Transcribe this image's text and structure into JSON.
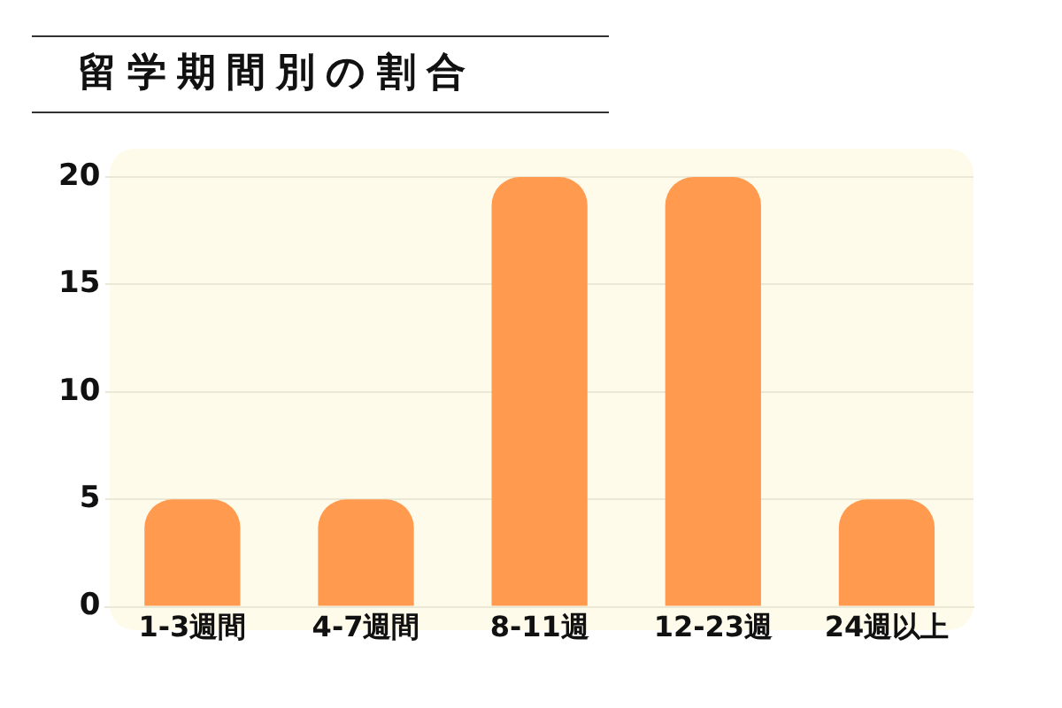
{
  "chart_data": {
    "type": "bar",
    "title": "留学期間別の割合",
    "categories": [
      "1-3週間",
      "4-7週間",
      "8-11週",
      "12-23週",
      "24週以上"
    ],
    "values": [
      5,
      5,
      20,
      20,
      5
    ],
    "color": "#ff9a4e",
    "ylim": [
      0,
      20
    ],
    "yticks": [
      0,
      5,
      10,
      15,
      20
    ],
    "grid": "y"
  }
}
